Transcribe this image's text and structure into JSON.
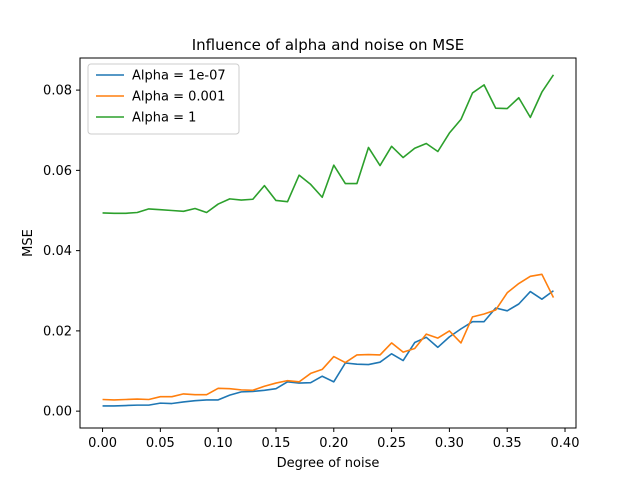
{
  "chart_data": {
    "type": "line",
    "title": "Influence of alpha and noise on MSE",
    "xlabel": "Degree of noise",
    "ylabel": "MSE",
    "xlim": [
      -0.0195,
      0.4095
    ],
    "ylim": [
      -0.0042,
      0.088
    ],
    "xticks": [
      0.0,
      0.05,
      0.1,
      0.15,
      0.2,
      0.25,
      0.3,
      0.35,
      0.4
    ],
    "xtick_labels": [
      "0.00",
      "0.05",
      "0.10",
      "0.15",
      "0.20",
      "0.25",
      "0.30",
      "0.35",
      "0.40"
    ],
    "yticks": [
      0.0,
      0.02,
      0.04,
      0.06,
      0.08
    ],
    "ytick_labels": [
      "0.00",
      "0.02",
      "0.04",
      "0.06",
      "0.08"
    ],
    "grid": false,
    "legend_position": "top-left",
    "x": [
      0.0,
      0.01,
      0.02,
      0.03,
      0.04,
      0.05,
      0.06,
      0.07,
      0.08,
      0.09,
      0.1,
      0.11,
      0.12,
      0.13,
      0.14,
      0.15,
      0.16,
      0.17,
      0.18,
      0.19,
      0.2,
      0.21,
      0.22,
      0.23,
      0.24,
      0.25,
      0.26,
      0.27,
      0.28,
      0.29,
      0.3,
      0.31,
      0.32,
      0.33,
      0.34,
      0.35,
      0.36,
      0.37,
      0.38,
      0.39
    ],
    "series": [
      {
        "name": "Alpha = 1e-07",
        "color": "#1f77b4",
        "values": [
          0.0013,
          0.0013,
          0.0014,
          0.0015,
          0.0015,
          0.002,
          0.0019,
          0.0023,
          0.0026,
          0.0028,
          0.0028,
          0.004,
          0.0048,
          0.0049,
          0.0052,
          0.0056,
          0.0073,
          0.007,
          0.0071,
          0.0087,
          0.0073,
          0.012,
          0.0117,
          0.0116,
          0.0122,
          0.0143,
          0.0126,
          0.0171,
          0.0184,
          0.0159,
          0.0185,
          0.0205,
          0.0223,
          0.0223,
          0.0257,
          0.025,
          0.0267,
          0.0298,
          0.0279,
          0.03
        ]
      },
      {
        "name": "Alpha = 0.001",
        "color": "#ff7f0e",
        "values": [
          0.0029,
          0.0028,
          0.0029,
          0.003,
          0.0029,
          0.0036,
          0.0036,
          0.0043,
          0.0041,
          0.0041,
          0.0057,
          0.0056,
          0.0053,
          0.0052,
          0.0062,
          0.007,
          0.0076,
          0.0073,
          0.0094,
          0.0104,
          0.0136,
          0.0121,
          0.014,
          0.0141,
          0.014,
          0.017,
          0.0147,
          0.0156,
          0.0192,
          0.0182,
          0.02,
          0.017,
          0.0235,
          0.0242,
          0.0252,
          0.0295,
          0.0318,
          0.0336,
          0.0341,
          0.0283
        ]
      },
      {
        "name": "Alpha = 1",
        "color": "#2ca02c",
        "values": [
          0.0494,
          0.0493,
          0.0493,
          0.0495,
          0.0504,
          0.0502,
          0.05,
          0.0498,
          0.0505,
          0.0495,
          0.0516,
          0.0529,
          0.0526,
          0.0528,
          0.0562,
          0.0525,
          0.0522,
          0.0588,
          0.0565,
          0.0533,
          0.0613,
          0.0567,
          0.0567,
          0.0657,
          0.0612,
          0.066,
          0.0632,
          0.0655,
          0.0667,
          0.0647,
          0.0693,
          0.0727,
          0.0793,
          0.0813,
          0.0755,
          0.0754,
          0.0781,
          0.0732,
          0.0795,
          0.0838
        ]
      }
    ]
  }
}
